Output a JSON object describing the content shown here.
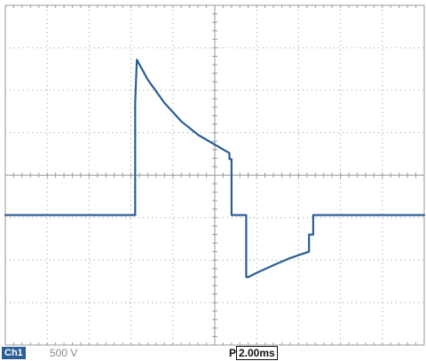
{
  "chart_data": {
    "type": "line",
    "title": "",
    "xlabel": "",
    "ylabel": "",
    "grid": true,
    "xlim": [
      -5,
      5
    ],
    "ylim": [
      -4,
      4
    ],
    "series": [
      {
        "values_in": "divisions",
        "x": [
          -5.0,
          -1.9,
          -1.9,
          -1.86,
          -1.6,
          -1.2,
          -0.8,
          -0.4,
          0.0,
          0.35,
          0.35,
          0.4,
          0.4,
          0.75,
          0.75,
          0.8,
          1.0,
          1.4,
          1.8,
          2.25,
          2.25,
          2.35,
          2.35,
          5.0
        ],
        "y": [
          -0.94,
          -0.94,
          1.7,
          2.72,
          2.25,
          1.7,
          1.27,
          0.95,
          0.72,
          0.52,
          0.38,
          0.38,
          -0.94,
          -0.94,
          -2.4,
          -2.4,
          -2.3,
          -2.12,
          -1.95,
          -1.8,
          -1.4,
          -1.4,
          -0.94,
          -0.94
        ]
      }
    ]
  },
  "status": {
    "channel": "Ch1",
    "volts_per_div": "500 V",
    "trigger_marker": "P",
    "time_per_div": "2.00ms"
  },
  "colors": {
    "trace": "#2a5e96",
    "grid": "#9a9a9a",
    "badge": "#2a5e96"
  }
}
